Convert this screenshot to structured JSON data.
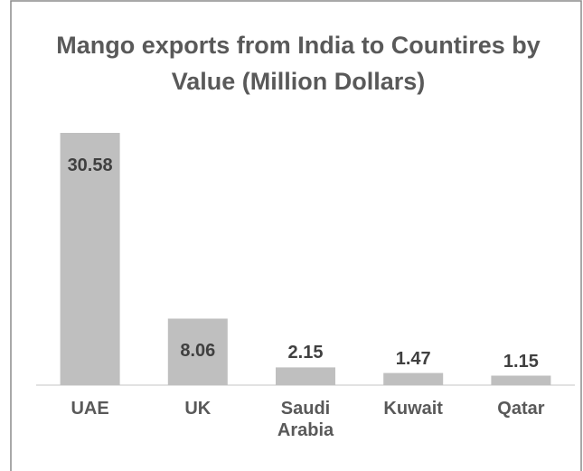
{
  "chart_data": {
    "type": "bar",
    "title": "Mango exports from India to Countires by Value (Million Dollars)",
    "categories": [
      "UAE",
      "UK",
      "Saudi Arabia",
      "Kuwait",
      "Qatar"
    ],
    "values": [
      30.58,
      8.06,
      2.15,
      1.47,
      1.15
    ],
    "color": "#bfbfbf"
  }
}
